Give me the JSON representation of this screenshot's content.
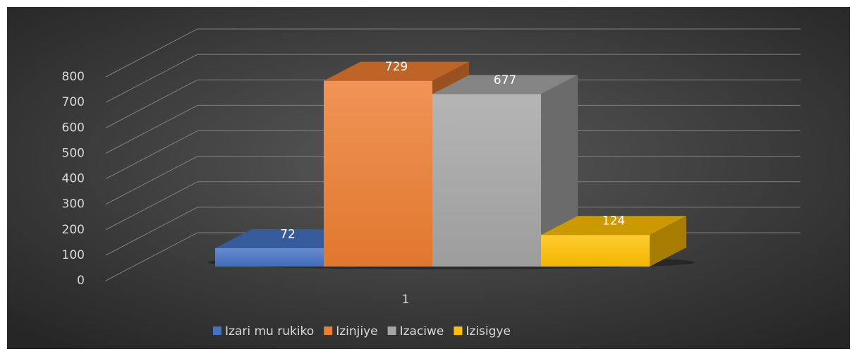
{
  "chart_data": {
    "type": "bar3d",
    "categories": [
      "1"
    ],
    "series": [
      {
        "name": "Izari mu rukiko",
        "color": "#4472c4",
        "values": [
          72
        ]
      },
      {
        "name": "Izinjiye",
        "color": "#ed7d31",
        "values": [
          729
        ]
      },
      {
        "name": "Izaciwe",
        "color": "#a5a5a5",
        "values": [
          677
        ]
      },
      {
        "name": "Izisigye",
        "color": "#ffc000",
        "values": [
          124
        ]
      }
    ],
    "ylim": [
      0,
      800
    ],
    "yticks": [
      0,
      100,
      200,
      300,
      400,
      500,
      600,
      700,
      800
    ],
    "grid": true,
    "legend": "bottom"
  }
}
